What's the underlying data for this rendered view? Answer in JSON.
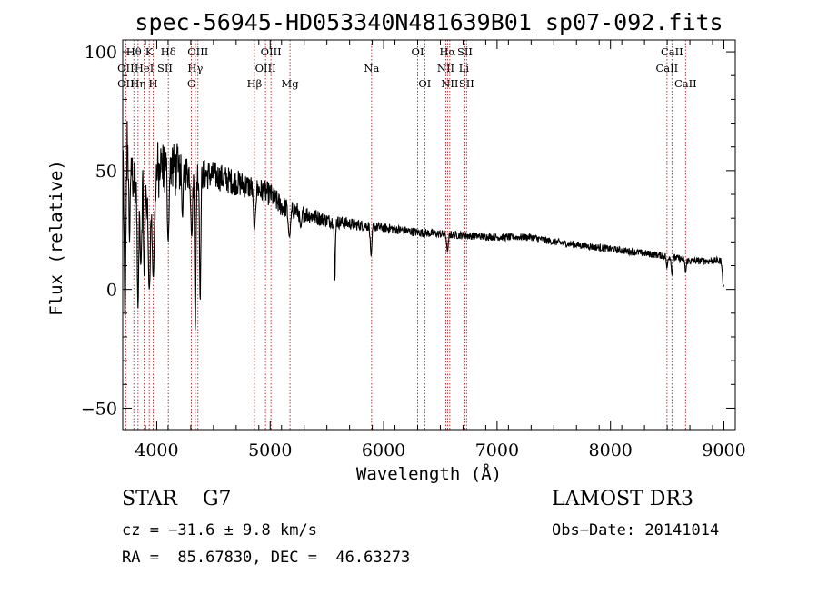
{
  "chart_data": {
    "type": "line",
    "title": "spec-56945-HD053340N481639B01_sp07-092.fits",
    "xlabel": "Wavelength (Å)",
    "ylabel": "Flux (relative)",
    "xlim": [
      3700,
      9100
    ],
    "ylim": [
      -59,
      105
    ],
    "xticks": [
      4000,
      5000,
      6000,
      7000,
      8000,
      9000
    ],
    "xtick_labels": [
      "4000",
      "5000",
      "6000",
      "7000",
      "8000",
      "9000"
    ],
    "yticks": [
      -50,
      0,
      50,
      100
    ],
    "ytick_labels": [
      "−50",
      "0",
      "50",
      "100"
    ],
    "continuum": [
      [
        3700,
        52
      ],
      [
        3750,
        60
      ],
      [
        3800,
        47
      ],
      [
        3850,
        44
      ],
      [
        3900,
        43
      ],
      [
        3950,
        46
      ],
      [
        4000,
        48
      ],
      [
        4050,
        50
      ],
      [
        4100,
        52
      ],
      [
        4200,
        50
      ],
      [
        4300,
        49
      ],
      [
        4500,
        48
      ],
      [
        4700,
        45
      ],
      [
        4900,
        42
      ],
      [
        5000,
        40
      ],
      [
        5100,
        35
      ],
      [
        5300,
        32
      ],
      [
        5500,
        29
      ],
      [
        5800,
        27
      ],
      [
        6000,
        26
      ],
      [
        6300,
        24
      ],
      [
        6600,
        23
      ],
      [
        7000,
        22
      ],
      [
        7300,
        22
      ],
      [
        7500,
        20
      ],
      [
        8000,
        17
      ],
      [
        8500,
        14
      ],
      [
        8700,
        12
      ],
      [
        9000,
        12
      ]
    ],
    "absorption_features": [
      [
        3720,
        -12,
        10
      ],
      [
        3760,
        20,
        8
      ],
      [
        3835,
        -8,
        10
      ],
      [
        3860,
        10,
        10
      ],
      [
        3890,
        5,
        8
      ],
      [
        3934,
        0,
        14
      ],
      [
        3969,
        5,
        14
      ],
      [
        4101,
        20,
        10
      ],
      [
        4227,
        30,
        8
      ],
      [
        4308,
        22,
        10
      ],
      [
        4340,
        -18,
        8
      ],
      [
        4383,
        -5,
        8
      ],
      [
        4861,
        25,
        12
      ],
      [
        5170,
        22,
        14
      ],
      [
        5270,
        26,
        12
      ],
      [
        5570,
        3,
        6
      ],
      [
        5890,
        14,
        10
      ],
      [
        6563,
        16,
        10
      ],
      [
        8498,
        9,
        8
      ],
      [
        8542,
        6,
        8
      ],
      [
        8662,
        7,
        8
      ],
      [
        8995,
        1,
        10
      ]
    ],
    "noise_amplitude": [
      [
        3700,
        12
      ],
      [
        4000,
        10
      ],
      [
        4500,
        6
      ],
      [
        5000,
        5
      ],
      [
        5500,
        3
      ],
      [
        6000,
        2
      ],
      [
        7000,
        1.5
      ],
      [
        9000,
        1.5
      ]
    ],
    "spectral_lines": [
      {
        "label": "Hθ",
        "x": 3798,
        "row": 0
      },
      {
        "label": "OII",
        "x": 3727,
        "row": 1
      },
      {
        "label": "OII",
        "x": 3727,
        "row": 2
      },
      {
        "label": "Hη",
        "x": 3835,
        "row": 2
      },
      {
        "label": "HeI",
        "x": 3889,
        "row": 1
      },
      {
        "label": "K",
        "x": 3934,
        "row": 0
      },
      {
        "label": "H",
        "x": 3969,
        "row": 2
      },
      {
        "label": "SII",
        "x": 4072,
        "row": 1
      },
      {
        "label": "Hδ",
        "x": 4102,
        "row": 0
      },
      {
        "label": "OIII",
        "x": 4363,
        "row": 0
      },
      {
        "label": "Hγ",
        "x": 4340,
        "row": 1
      },
      {
        "label": "G",
        "x": 4305,
        "row": 2
      },
      {
        "label": "Hβ",
        "x": 4861,
        "row": 2
      },
      {
        "label": "OIII",
        "x": 4959,
        "row": 1
      },
      {
        "label": "OIII",
        "x": 5007,
        "row": 0
      },
      {
        "label": "Mg",
        "x": 5175,
        "row": 2
      },
      {
        "label": "Na",
        "x": 5894,
        "row": 1
      },
      {
        "label": "OI",
        "x": 6300,
        "row": 0
      },
      {
        "label": "OI",
        "x": 6363,
        "row": 2
      },
      {
        "label": "NII",
        "x": 6548,
        "row": 1
      },
      {
        "label": "Hα",
        "x": 6563,
        "row": 0
      },
      {
        "label": "NII",
        "x": 6583,
        "row": 2
      },
      {
        "label": "SII",
        "x": 6716,
        "row": 0
      },
      {
        "label": "Li",
        "x": 6708,
        "row": 1
      },
      {
        "label": "SII",
        "x": 6731,
        "row": 2
      },
      {
        "label": "CaII",
        "x": 8498,
        "row": 1
      },
      {
        "label": "CaII",
        "x": 8542,
        "row": 0
      },
      {
        "label": "CaII",
        "x": 8662,
        "row": 2
      }
    ]
  },
  "info": {
    "star_class": "STAR    G7",
    "cz": "cz = −31.6 ± 9.8 km/s",
    "radec": "RA =  85.67830, DEC =  46.63273",
    "survey": "LAMOST DR3",
    "obs_date": "Obs−Date: 20141014"
  },
  "colors": {
    "axis": "#000000",
    "spectrum": "#000000",
    "line_marker": "#b22222",
    "background": "#ffffff"
  }
}
